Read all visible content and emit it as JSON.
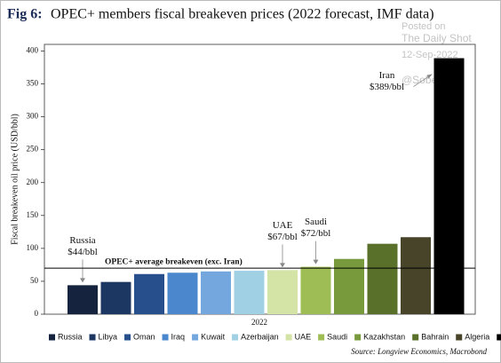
{
  "title_prefix": "Fig 6:",
  "watermark": [
    "Posted on",
    "The Daily Shot",
    "12-Sep-2022",
    "@SoberLook"
  ],
  "chart_data": {
    "type": "bar",
    "title": "OPEC+ members fiscal breakeven prices (2022 forecast, IMF data)",
    "y_label": "Fiscal breakeven oil price (USD/bbl)",
    "x_label": "2022",
    "source": "Source: Longview Economics, Macrobond",
    "categories": [
      "Russia",
      "Libya",
      "Oman",
      "Iraq",
      "Kuwait",
      "Azerbaijan",
      "UAE",
      "Saudi",
      "Kazakhstan",
      "Bahrain",
      "Algeria",
      "Iran"
    ],
    "values": [
      44,
      49,
      61,
      63,
      65,
      66,
      67,
      72,
      84,
      107,
      117,
      389
    ],
    "value_labels": [
      "$44/bbl",
      null,
      null,
      null,
      null,
      null,
      "$67/bbl",
      "$72/bbl",
      null,
      null,
      null,
      "$389/bbl"
    ],
    "value_label_titles": [
      "Russia",
      null,
      null,
      null,
      null,
      null,
      "UAE",
      "Saudi",
      null,
      null,
      null,
      "Iran"
    ],
    "colors": [
      "#15233f",
      "#1d3763",
      "#264f8c",
      "#4a87cc",
      "#73a7de",
      "#9fd0e4",
      "#d4e3a6",
      "#9fbd55",
      "#789a3c",
      "#58702a",
      "#474429",
      "#000000"
    ],
    "reference_line": {
      "value": 70,
      "label": "OPEC+ average breakeven (exc. Iran)"
    },
    "ylim": [
      0,
      410
    ],
    "yticks": [
      0,
      50,
      100,
      150,
      200,
      250,
      300,
      350,
      400
    ],
    "grid": false,
    "legend": "bottom"
  }
}
